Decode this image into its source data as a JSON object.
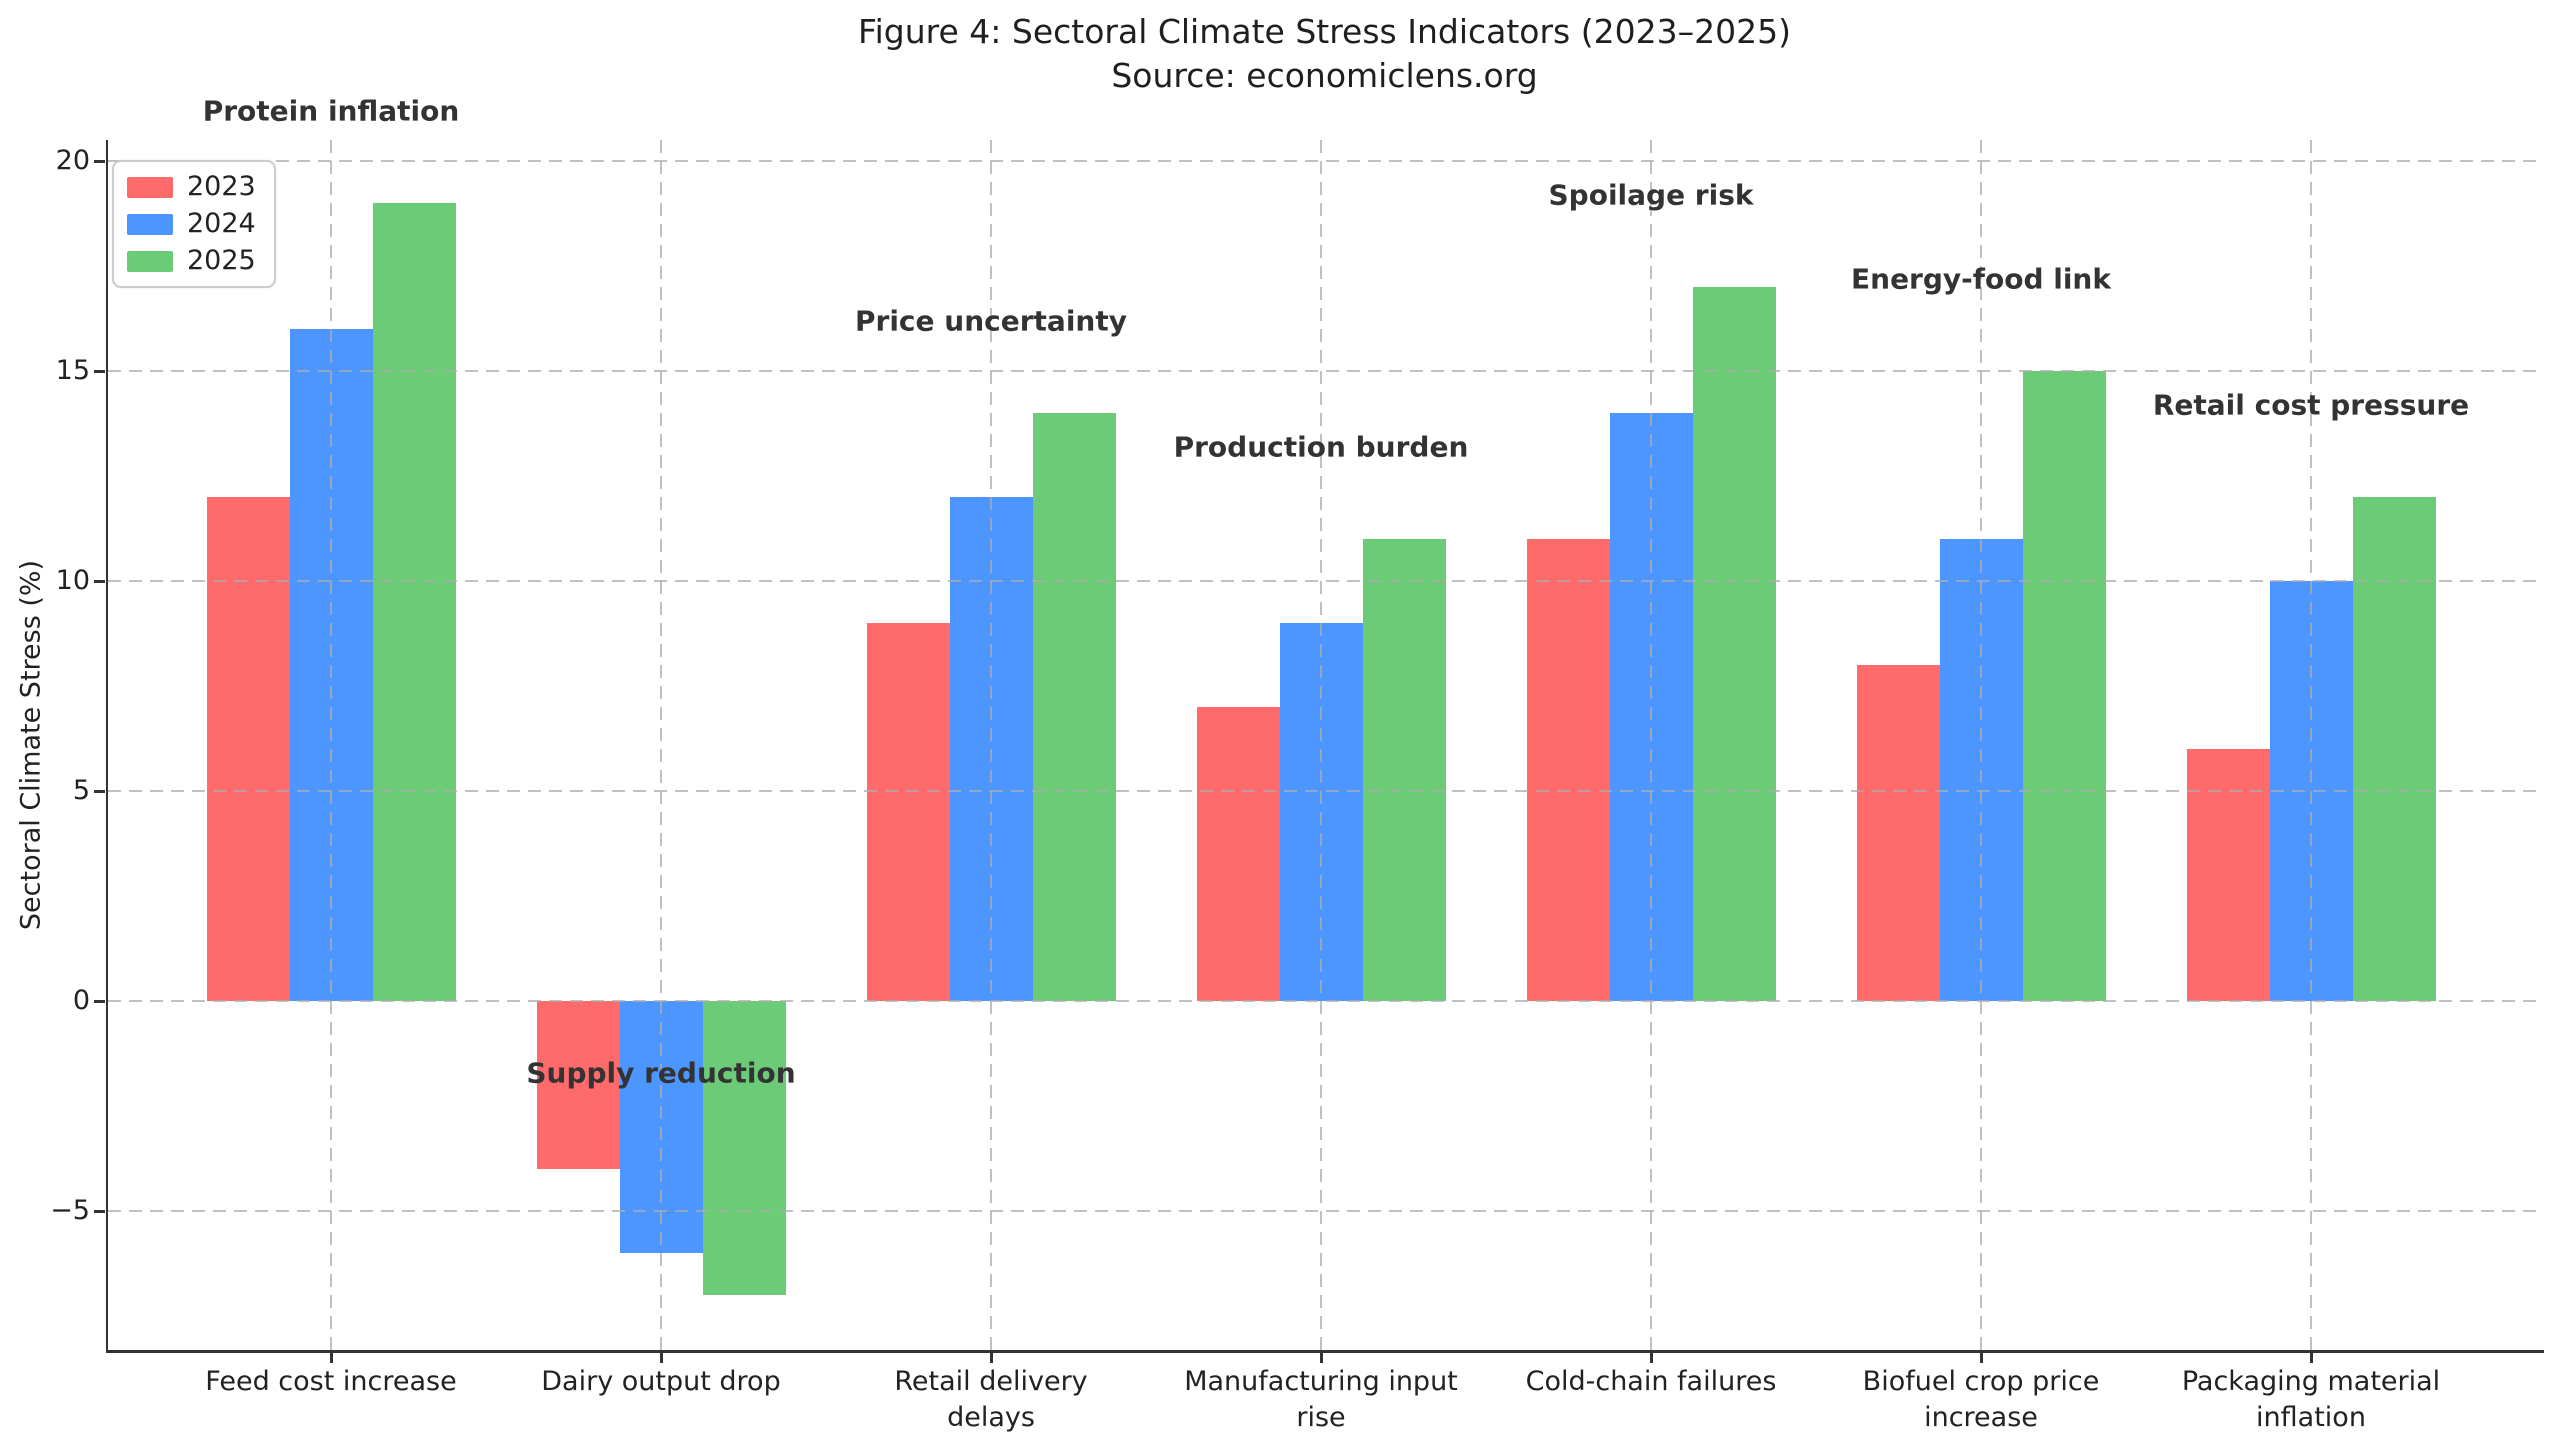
{
  "figure": {
    "title": "Figure 4: Sectoral Climate Stress Indicators (2023–2025)",
    "subtitle": "Source: economiclens.org"
  },
  "chart_data": {
    "type": "bar",
    "title": "Figure 4: Sectoral Climate Stress Indicators (2023–2025)",
    "subtitle": "Source: economiclens.org",
    "xlabel": "",
    "ylabel": "Sectoral Climate Stress (%)",
    "categories": [
      "Feed cost increase",
      "Dairy output drop",
      "Retail delivery\ndelays",
      "Manufacturing input\nrise",
      "Cold-chain failures",
      "Biofuel crop price\nincrease",
      "Packaging material\ninflation"
    ],
    "series": [
      {
        "name": "2023",
        "color": "#FF6B6B",
        "values": [
          12,
          -4,
          9,
          7,
          11,
          8,
          6
        ]
      },
      {
        "name": "2024",
        "color": "#4D96FF",
        "values": [
          16,
          -6,
          12,
          9,
          14,
          11,
          10
        ]
      },
      {
        "name": "2025",
        "color": "#6BCB77",
        "values": [
          19,
          -7,
          14,
          11,
          17,
          15,
          12
        ]
      }
    ],
    "annotations": [
      {
        "text": "Protein inflation",
        "group": 0,
        "y": 21.2
      },
      {
        "text": "Supply reduction",
        "group": 1,
        "y": -1.7
      },
      {
        "text": "Price uncertainty",
        "group": 2,
        "y": 16.2
      },
      {
        "text": "Production burden",
        "group": 3,
        "y": 13.2
      },
      {
        "text": "Spoilage risk",
        "group": 4,
        "y": 19.2
      },
      {
        "text": "Energy-food link",
        "group": 5,
        "y": 17.2
      },
      {
        "text": "Retail cost pressure",
        "group": 6,
        "y": 14.2
      }
    ],
    "yticks": [
      -5,
      0,
      5,
      10,
      15,
      20
    ],
    "ylim": [
      -8.3,
      20.5
    ],
    "grid": true,
    "grid_axis": "both",
    "legend_position": "upper left",
    "legend_labels": [
      "2023",
      "2024",
      "2025"
    ],
    "colors": {
      "grid": "#cccccc",
      "axis": "#333333",
      "text": "#222222",
      "annotation": "#333333",
      "background": "#ffffff"
    }
  }
}
